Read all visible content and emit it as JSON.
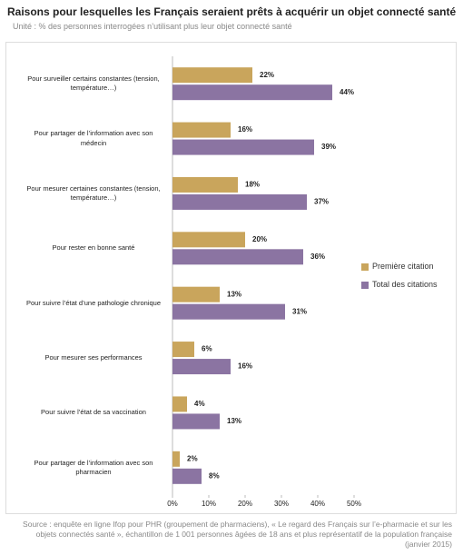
{
  "chart_data": {
    "type": "bar",
    "orientation": "horizontal",
    "title": "Raisons pour lesquelles les Français seraient prêts à acquérir un objet connecté santé",
    "subtitle": "Unité : % des personnes interrogées n’utilisant plus leur objet connecté santé",
    "categories": [
      "Pour surveiller certains constantes (tension, température…)",
      "Pour partager de l’information avec son médecin",
      "Pour mesurer certaines constantes (tension, température…)",
      "Pour rester en bonne santé",
      "Pour suivre l’état d’une pathologie chronique",
      "Pour mesurer ses performances",
      "Pour suivre l’état de sa vaccination",
      "Pour partager de l’information avec son pharmacien"
    ],
    "series": [
      {
        "name": "Première citation",
        "color": "#c9a55c",
        "values": [
          22,
          16,
          18,
          20,
          13,
          6,
          4,
          2
        ],
        "value_labels": [
          "22%",
          "16%",
          "18%",
          "20%",
          "13%",
          "6%",
          "4%",
          "2%"
        ]
      },
      {
        "name": "Total des citations",
        "color": "#8b74a2",
        "values": [
          44,
          39,
          37,
          36,
          31,
          16,
          13,
          8
        ],
        "value_labels": [
          "44%",
          "39%",
          "37%",
          "36%",
          "31%",
          "16%",
          "13%",
          "8%"
        ]
      }
    ],
    "xlim": [
      0,
      50
    ],
    "xticks": [
      {
        "value": 0,
        "label": "0%"
      },
      {
        "value": 10,
        "label": "10%"
      },
      {
        "value": 20,
        "label": "20%"
      },
      {
        "value": 30,
        "label": "30%"
      },
      {
        "value": 40,
        "label": "40%"
      },
      {
        "value": 50,
        "label": "50%"
      }
    ],
    "legend": "right",
    "source": "Source : enquête en ligne Ifop pour PHR (groupement de pharmaciens), « Le regard des Français sur l’e-pharmacie et sur les objets connectés santé », échantillon de 1 001 personnes âgées de 18 ans et plus représentatif de la population française (janvier 2015)"
  }
}
